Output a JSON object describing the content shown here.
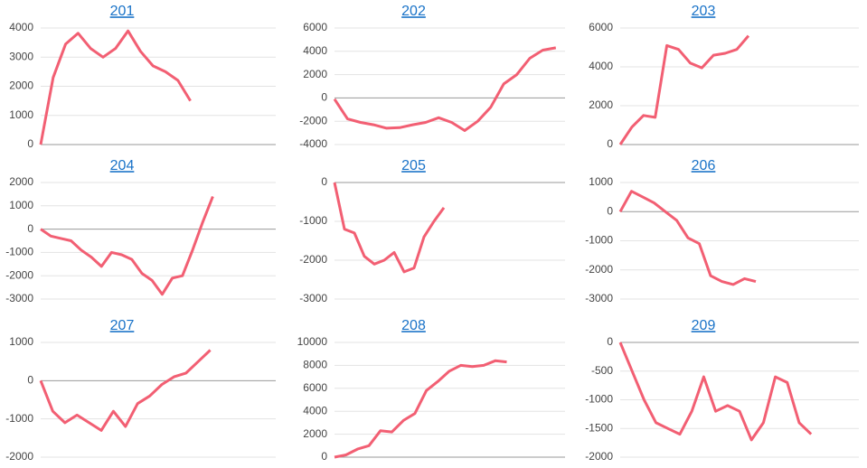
{
  "chart_data": [
    {
      "type": "line",
      "title": "201",
      "color": "#f25f73",
      "values": [
        0,
        2300,
        3450,
        3820,
        3300,
        3000,
        3300,
        3900,
        3200,
        2700,
        2500,
        2200,
        1500
      ],
      "ylim": [
        0,
        4000
      ],
      "yticks": [
        0,
        1000,
        2000,
        3000,
        4000
      ],
      "grid": true
    },
    {
      "type": "line",
      "title": "202",
      "color": "#f25f73",
      "values": [
        -100,
        -1800,
        -2100,
        -2300,
        -2600,
        -2550,
        -2300,
        -2100,
        -1700,
        -2100,
        -2800,
        -2000,
        -800,
        1200,
        2000,
        3400,
        4100,
        4300
      ],
      "ylim": [
        -4000,
        6000
      ],
      "yticks": [
        -4000,
        -2000,
        0,
        2000,
        4000,
        6000
      ],
      "grid": true
    },
    {
      "type": "line",
      "title": "203",
      "color": "#f25f73",
      "values": [
        0,
        900,
        1500,
        1400,
        5100,
        4900,
        4200,
        3950,
        4600,
        4700,
        4900,
        5600
      ],
      "ylim": [
        0,
        6000
      ],
      "yticks": [
        0,
        2000,
        4000,
        6000
      ],
      "grid": true
    },
    {
      "type": "line",
      "title": "204",
      "color": "#f25f73",
      "values": [
        0,
        -300,
        -400,
        -500,
        -900,
        -1200,
        -1600,
        -1000,
        -1100,
        -1300,
        -1900,
        -2200,
        -2800,
        -2100,
        -2000,
        -900,
        300,
        1400
      ],
      "ylim": [
        -3000,
        2000
      ],
      "yticks": [
        -3000,
        -2000,
        -1000,
        0,
        1000,
        2000
      ],
      "grid": true
    },
    {
      "type": "line",
      "title": "205",
      "color": "#f25f73",
      "values": [
        0,
        -1200,
        -1300,
        -1900,
        -2100,
        -2000,
        -1800,
        -2300,
        -2200,
        -1400,
        -1000,
        -650
      ],
      "ylim": [
        -3000,
        0
      ],
      "yticks": [
        -3000,
        -2000,
        -1000,
        0
      ],
      "grid": true
    },
    {
      "type": "line",
      "title": "206",
      "color": "#f25f73",
      "values": [
        0,
        700,
        500,
        300,
        0,
        -300,
        -900,
        -1100,
        -2200,
        -2400,
        -2500,
        -2300,
        -2400
      ],
      "ylim": [
        -3000,
        1000
      ],
      "yticks": [
        -3000,
        -2000,
        -1000,
        0,
        1000
      ],
      "grid": true
    },
    {
      "type": "line",
      "title": "207",
      "color": "#f25f73",
      "values": [
        0,
        -800,
        -1100,
        -900,
        -1100,
        -1300,
        -800,
        -1200,
        -600,
        -400,
        -100,
        100,
        200,
        500,
        800
      ],
      "ylim": [
        -2000,
        1000
      ],
      "yticks": [
        -2000,
        -1000,
        0,
        1000
      ],
      "grid": true
    },
    {
      "type": "line",
      "title": "208",
      "color": "#f25f73",
      "values": [
        0,
        200,
        700,
        1000,
        2300,
        2200,
        3200,
        3800,
        5800,
        6600,
        7500,
        8000,
        7900,
        8000,
        8400,
        8300
      ],
      "ylim": [
        0,
        10000
      ],
      "yticks": [
        0,
        2000,
        4000,
        6000,
        8000,
        10000
      ],
      "grid": true
    },
    {
      "type": "line",
      "title": "209",
      "color": "#f25f73",
      "values": [
        0,
        -500,
        -1000,
        -1400,
        -1500,
        -1600,
        -1200,
        -600,
        -1200,
        -1100,
        -1200,
        -1700,
        -1400,
        -600,
        -700,
        -1400,
        -1600
      ],
      "ylim": [
        -2000,
        0
      ],
      "yticks": [
        -2000,
        -1500,
        -1000,
        -500,
        0
      ],
      "grid": true
    }
  ]
}
